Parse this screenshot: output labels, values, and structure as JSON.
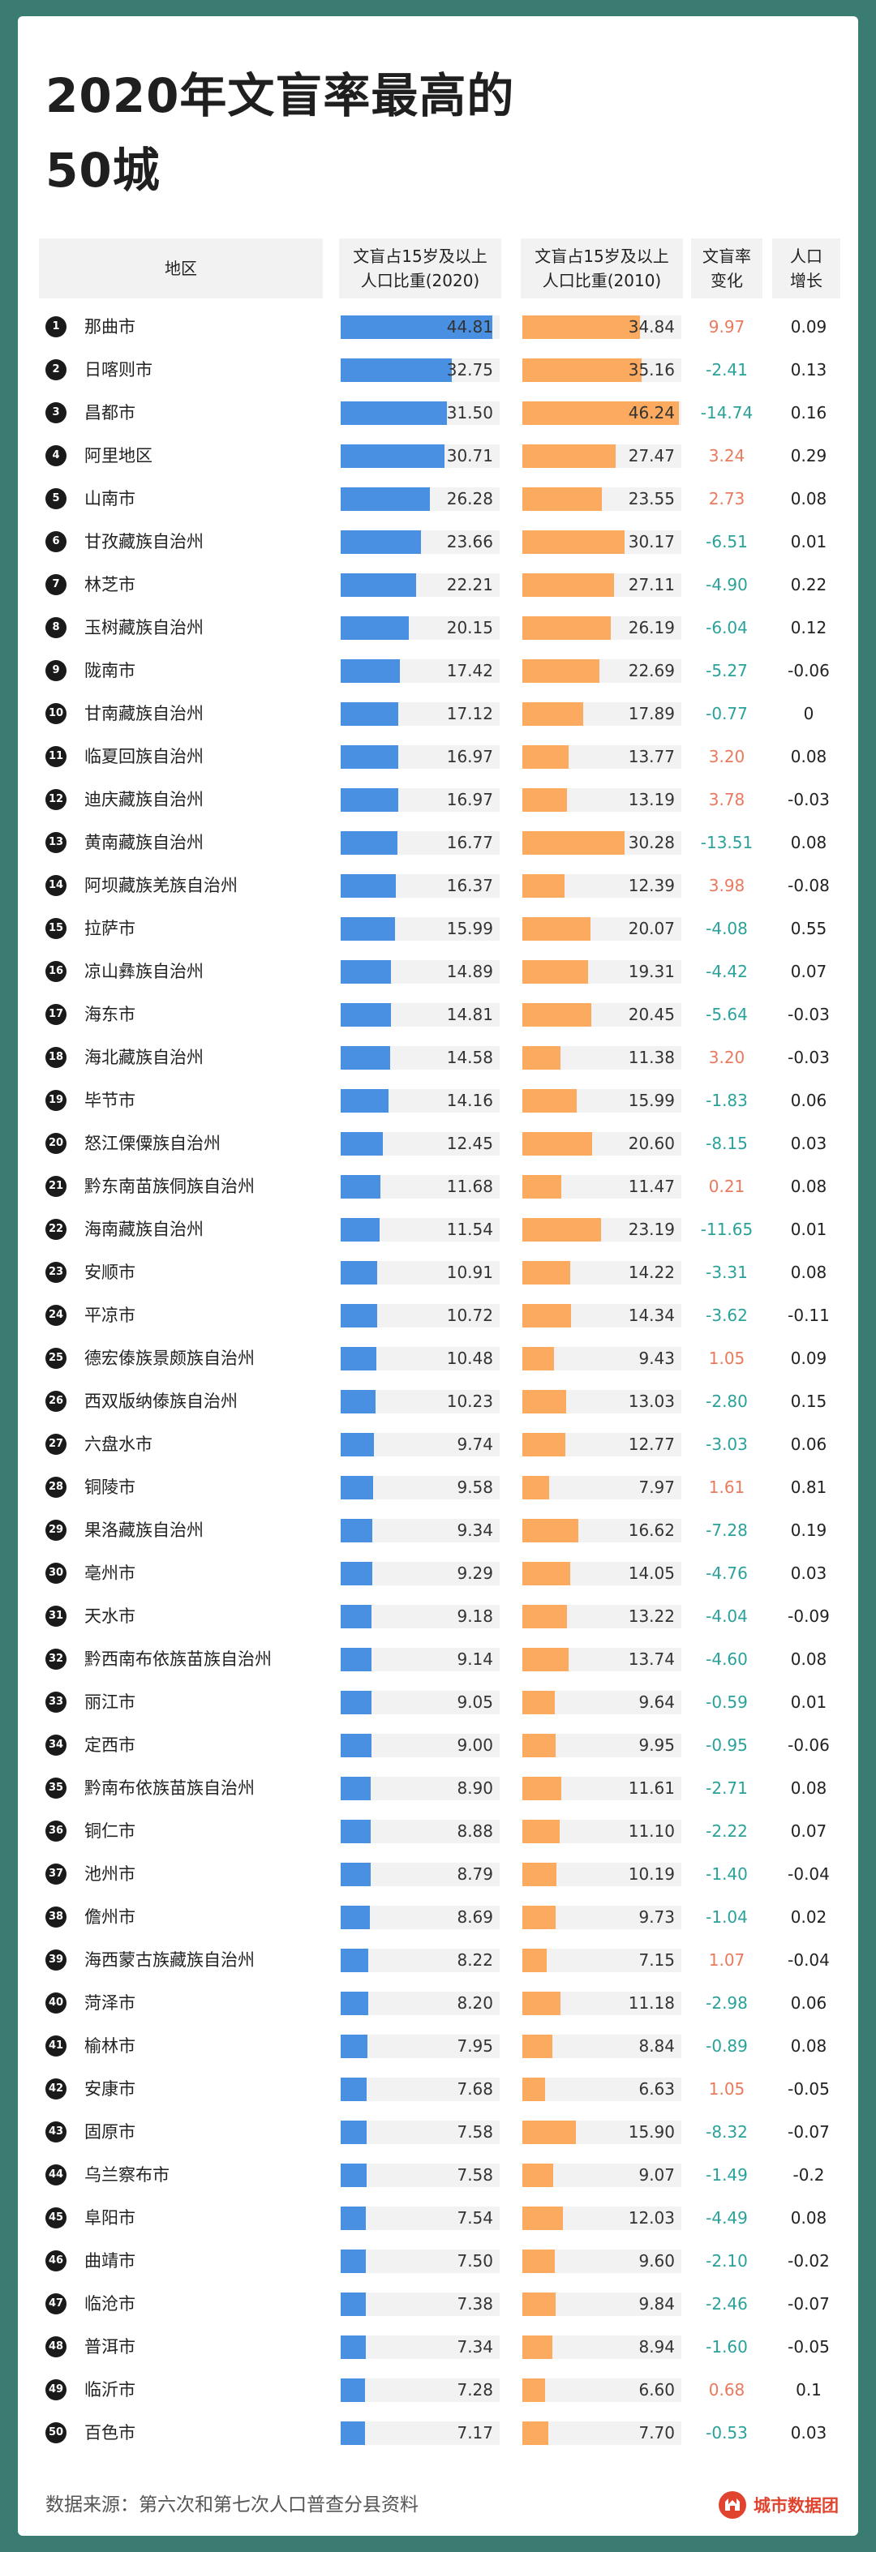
{
  "title_line1": "2020年文盲率最高的",
  "title_line2": "50城",
  "headers": {
    "region": "地区",
    "rate2020_l1": "文盲占15岁及以上",
    "rate2020_l2": "人口比重(2020)",
    "rate2010_l1": "文盲占15岁及以上",
    "rate2010_l2": "人口比重(2010)",
    "change_l1": "文盲率",
    "change_l2": "变化",
    "growth_l1": "人口",
    "growth_l2": "增长"
  },
  "footer": {
    "source": "数据来源：第六次和第七次人口普查分县资料",
    "brand": "城市数据团"
  },
  "colors": {
    "bar2020": "#4a90e2",
    "bar2010": "#fbaa5f",
    "negative_change": "#2aa29a",
    "positive_change": "#ea7a5e"
  },
  "chart_data": {
    "type": "table",
    "columns": [
      "地区",
      "文盲占15岁及以上人口比重(2020)",
      "文盲占15岁及以上人口比重(2010)",
      "文盲率变化",
      "人口增长"
    ],
    "bar_scale_max": 47,
    "rows": [
      {
        "rank": "1",
        "region": "那曲市",
        "r2020": "44.81",
        "r2010": "34.84",
        "change": "9.97",
        "growth": "0.09"
      },
      {
        "rank": "2",
        "region": "日喀则市",
        "r2020": "32.75",
        "r2010": "35.16",
        "change": "-2.41",
        "growth": "0.13"
      },
      {
        "rank": "3",
        "region": "昌都市",
        "r2020": "31.50",
        "r2010": "46.24",
        "change": "-14.74",
        "growth": "0.16"
      },
      {
        "rank": "4",
        "region": "阿里地区",
        "r2020": "30.71",
        "r2010": "27.47",
        "change": "3.24",
        "growth": "0.29"
      },
      {
        "rank": "5",
        "region": "山南市",
        "r2020": "26.28",
        "r2010": "23.55",
        "change": "2.73",
        "growth": "0.08"
      },
      {
        "rank": "6",
        "region": "甘孜藏族自治州",
        "r2020": "23.66",
        "r2010": "30.17",
        "change": "-6.51",
        "growth": "0.01"
      },
      {
        "rank": "7",
        "region": "林芝市",
        "r2020": "22.21",
        "r2010": "27.11",
        "change": "-4.90",
        "growth": "0.22"
      },
      {
        "rank": "8",
        "region": "玉树藏族自治州",
        "r2020": "20.15",
        "r2010": "26.19",
        "change": "-6.04",
        "growth": "0.12"
      },
      {
        "rank": "9",
        "region": "陇南市",
        "r2020": "17.42",
        "r2010": "22.69",
        "change": "-5.27",
        "growth": "-0.06"
      },
      {
        "rank": "10",
        "region": "甘南藏族自治州",
        "r2020": "17.12",
        "r2010": "17.89",
        "change": "-0.77",
        "growth": "0"
      },
      {
        "rank": "11",
        "region": "临夏回族自治州",
        "r2020": "16.97",
        "r2010": "13.77",
        "change": "3.20",
        "growth": "0.08"
      },
      {
        "rank": "12",
        "region": "迪庆藏族自治州",
        "r2020": "16.97",
        "r2010": "13.19",
        "change": "3.78",
        "growth": "-0.03"
      },
      {
        "rank": "13",
        "region": "黄南藏族自治州",
        "r2020": "16.77",
        "r2010": "30.28",
        "change": "-13.51",
        "growth": "0.08"
      },
      {
        "rank": "14",
        "region": "阿坝藏族羌族自治州",
        "r2020": "16.37",
        "r2010": "12.39",
        "change": "3.98",
        "growth": "-0.08"
      },
      {
        "rank": "15",
        "region": "拉萨市",
        "r2020": "15.99",
        "r2010": "20.07",
        "change": "-4.08",
        "growth": "0.55"
      },
      {
        "rank": "16",
        "region": "凉山彝族自治州",
        "r2020": "14.89",
        "r2010": "19.31",
        "change": "-4.42",
        "growth": "0.07"
      },
      {
        "rank": "17",
        "region": "海东市",
        "r2020": "14.81",
        "r2010": "20.45",
        "change": "-5.64",
        "growth": "-0.03"
      },
      {
        "rank": "18",
        "region": "海北藏族自治州",
        "r2020": "14.58",
        "r2010": "11.38",
        "change": "3.20",
        "growth": "-0.03"
      },
      {
        "rank": "19",
        "region": "毕节市",
        "r2020": "14.16",
        "r2010": "15.99",
        "change": "-1.83",
        "growth": "0.06"
      },
      {
        "rank": "20",
        "region": "怒江傈僳族自治州",
        "r2020": "12.45",
        "r2010": "20.60",
        "change": "-8.15",
        "growth": "0.03"
      },
      {
        "rank": "21",
        "region": "黔东南苗族侗族自治州",
        "r2020": "11.68",
        "r2010": "11.47",
        "change": "0.21",
        "growth": "0.08"
      },
      {
        "rank": "22",
        "region": "海南藏族自治州",
        "r2020": "11.54",
        "r2010": "23.19",
        "change": "-11.65",
        "growth": "0.01"
      },
      {
        "rank": "23",
        "region": "安顺市",
        "r2020": "10.91",
        "r2010": "14.22",
        "change": "-3.31",
        "growth": "0.08"
      },
      {
        "rank": "24",
        "region": "平凉市",
        "r2020": "10.72",
        "r2010": "14.34",
        "change": "-3.62",
        "growth": "-0.11"
      },
      {
        "rank": "25",
        "region": "德宏傣族景颇族自治州",
        "r2020": "10.48",
        "r2010": "9.43",
        "change": "1.05",
        "growth": "0.09"
      },
      {
        "rank": "26",
        "region": "西双版纳傣族自治州",
        "r2020": "10.23",
        "r2010": "13.03",
        "change": "-2.80",
        "growth": "0.15"
      },
      {
        "rank": "27",
        "region": "六盘水市",
        "r2020": "9.74",
        "r2010": "12.77",
        "change": "-3.03",
        "growth": "0.06"
      },
      {
        "rank": "28",
        "region": "铜陵市",
        "r2020": "9.58",
        "r2010": "7.97",
        "change": "1.61",
        "growth": "0.81"
      },
      {
        "rank": "29",
        "region": "果洛藏族自治州",
        "r2020": "9.34",
        "r2010": "16.62",
        "change": "-7.28",
        "growth": "0.19"
      },
      {
        "rank": "30",
        "region": "亳州市",
        "r2020": "9.29",
        "r2010": "14.05",
        "change": "-4.76",
        "growth": "0.03"
      },
      {
        "rank": "31",
        "region": "天水市",
        "r2020": "9.18",
        "r2010": "13.22",
        "change": "-4.04",
        "growth": "-0.09"
      },
      {
        "rank": "32",
        "region": "黔西南布依族苗族自治州",
        "r2020": "9.14",
        "r2010": "13.74",
        "change": "-4.60",
        "growth": "0.08"
      },
      {
        "rank": "33",
        "region": "丽江市",
        "r2020": "9.05",
        "r2010": "9.64",
        "change": "-0.59",
        "growth": "0.01"
      },
      {
        "rank": "34",
        "region": "定西市",
        "r2020": "9.00",
        "r2010": "9.95",
        "change": "-0.95",
        "growth": "-0.06"
      },
      {
        "rank": "35",
        "region": "黔南布依族苗族自治州",
        "r2020": "8.90",
        "r2010": "11.61",
        "change": "-2.71",
        "growth": "0.08"
      },
      {
        "rank": "36",
        "region": "铜仁市",
        "r2020": "8.88",
        "r2010": "11.10",
        "change": "-2.22",
        "growth": "0.07"
      },
      {
        "rank": "37",
        "region": "池州市",
        "r2020": "8.79",
        "r2010": "10.19",
        "change": "-1.40",
        "growth": "-0.04"
      },
      {
        "rank": "38",
        "region": "儋州市",
        "r2020": "8.69",
        "r2010": "9.73",
        "change": "-1.04",
        "growth": "0.02"
      },
      {
        "rank": "39",
        "region": "海西蒙古族藏族自治州",
        "r2020": "8.22",
        "r2010": "7.15",
        "change": "1.07",
        "growth": "-0.04"
      },
      {
        "rank": "40",
        "region": "菏泽市",
        "r2020": "8.20",
        "r2010": "11.18",
        "change": "-2.98",
        "growth": "0.06"
      },
      {
        "rank": "41",
        "region": "榆林市",
        "r2020": "7.95",
        "r2010": "8.84",
        "change": "-0.89",
        "growth": "0.08"
      },
      {
        "rank": "42",
        "region": "安康市",
        "r2020": "7.68",
        "r2010": "6.63",
        "change": "1.05",
        "growth": "-0.05"
      },
      {
        "rank": "43",
        "region": "固原市",
        "r2020": "7.58",
        "r2010": "15.90",
        "change": "-8.32",
        "growth": "-0.07"
      },
      {
        "rank": "44",
        "region": "乌兰察布市",
        "r2020": "7.58",
        "r2010": "9.07",
        "change": "-1.49",
        "growth": "-0.2"
      },
      {
        "rank": "45",
        "region": "阜阳市",
        "r2020": "7.54",
        "r2010": "12.03",
        "change": "-4.49",
        "growth": "0.08"
      },
      {
        "rank": "46",
        "region": "曲靖市",
        "r2020": "7.50",
        "r2010": "9.60",
        "change": "-2.10",
        "growth": "-0.02"
      },
      {
        "rank": "47",
        "region": "临沧市",
        "r2020": "7.38",
        "r2010": "9.84",
        "change": "-2.46",
        "growth": "-0.07"
      },
      {
        "rank": "48",
        "region": "普洱市",
        "r2020": "7.34",
        "r2010": "8.94",
        "change": "-1.60",
        "growth": "-0.05"
      },
      {
        "rank": "49",
        "region": "临沂市",
        "r2020": "7.28",
        "r2010": "6.60",
        "change": "0.68",
        "growth": "0.1"
      },
      {
        "rank": "50",
        "region": "百色市",
        "r2020": "7.17",
        "r2010": "7.70",
        "change": "-0.53",
        "growth": "0.03"
      }
    ]
  }
}
